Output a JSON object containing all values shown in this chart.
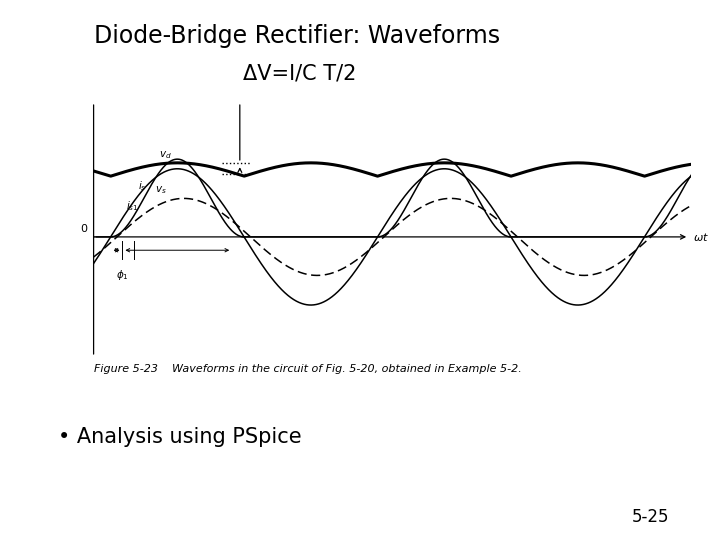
{
  "title": "Diode-Bridge Rectifier: Waveforms",
  "title_fontsize": 17,
  "annotation_text": "ΔV=I/C T/2",
  "annotation_fontsize": 15,
  "bullet_text": "• Analysis using PSpice",
  "bullet_fontsize": 15,
  "page_number": "5-25",
  "page_fontsize": 12,
  "figure_caption": "Figure 5-23    Waveforms in the circuit of Fig. 5-20, obtained in Example 5-2.",
  "figure_caption_fontsize": 8,
  "bg_color": "#ffffff"
}
